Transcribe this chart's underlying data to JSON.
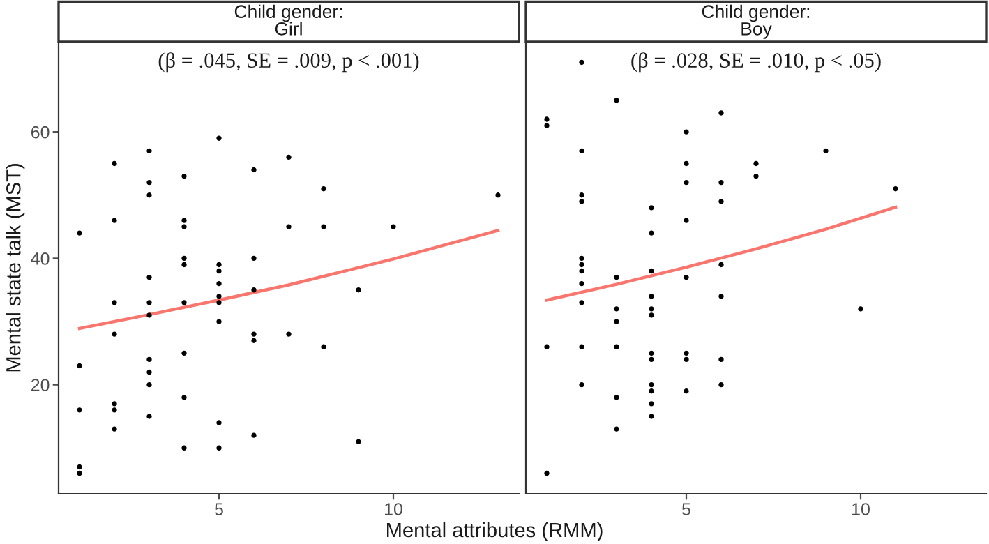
{
  "chart_data": [
    {
      "type": "scatter",
      "title": "Child gender:\nGirl",
      "xlabel": "Mental attributes (RMM)",
      "ylabel": "Mental state talk (MST)",
      "annotations": [
        "(β = .045, SE = .009, p < .001)"
      ],
      "xlim": [
        0.4,
        13.6
      ],
      "xticks": [
        5,
        10
      ],
      "ylim": [
        2.75,
        74.25
      ],
      "yticks": [
        20,
        40,
        60
      ],
      "grid": false,
      "legend": false,
      "marker": "circle",
      "series": [
        {
          "color": "#000000",
          "x": [
            1,
            1,
            1,
            1,
            1,
            2,
            2,
            2,
            2,
            2,
            2,
            2,
            3,
            3,
            3,
            3,
            3,
            3,
            3,
            3,
            3,
            3,
            4,
            4,
            4,
            4,
            4,
            4,
            4,
            4,
            4,
            5,
            5,
            5,
            5,
            5,
            5,
            5,
            5,
            5,
            6,
            6,
            6,
            6,
            6,
            6,
            7,
            7,
            7,
            8,
            8,
            8,
            9,
            9,
            10,
            13
          ],
          "values": [
            44,
            23,
            16,
            7,
            6,
            55,
            46,
            33,
            28,
            17,
            16,
            13,
            57,
            52,
            50,
            37,
            33,
            31,
            24,
            22,
            20,
            15,
            53,
            46,
            45,
            40,
            39,
            33,
            25,
            18,
            10,
            59,
            39,
            38,
            36,
            34,
            33,
            30,
            14,
            10,
            54,
            40,
            35,
            28,
            27,
            12,
            56,
            45,
            28,
            51,
            45,
            26,
            35,
            11,
            45,
            50
          ]
        },
        {
          "type": "line",
          "color": "#f8766d",
          "marker": "none",
          "line_style": "solid",
          "x": [
            1,
            3,
            5,
            7,
            10,
            13
          ],
          "values": [
            28.9,
            31.1,
            33.4,
            35.8,
            39.9,
            44.4
          ]
        }
      ]
    },
    {
      "type": "scatter",
      "title": "Child gender:\nBoy",
      "annotations": [
        "(β = .028, SE = .010, p < .05)"
      ],
      "xlim": [
        0.4,
        13.6
      ],
      "xticks": [
        5,
        10
      ],
      "ylim": [
        2.75,
        74.25
      ],
      "yticks": [
        20,
        40,
        60
      ],
      "tick_labels": "x",
      "grid": false,
      "legend": false,
      "marker": "circle",
      "series": [
        {
          "color": "#000000",
          "x": [
            1,
            1,
            1,
            1,
            2,
            2,
            2,
            2,
            2,
            2,
            2,
            2,
            2,
            2,
            2,
            3,
            3,
            3,
            3,
            3,
            3,
            3,
            4,
            4,
            4,
            4,
            4,
            4,
            4,
            4,
            4,
            4,
            4,
            4,
            5,
            5,
            5,
            5,
            5,
            5,
            5,
            5,
            6,
            6,
            6,
            6,
            6,
            6,
            6,
            7,
            7,
            9,
            10,
            11
          ],
          "values": [
            62,
            61,
            26,
            6,
            71,
            57,
            50,
            49,
            40,
            39,
            38,
            36,
            33,
            26,
            20,
            65,
            37,
            32,
            30,
            26,
            18,
            13,
            48,
            44,
            38,
            34,
            32,
            31,
            25,
            24,
            20,
            19,
            17,
            15,
            60,
            55,
            52,
            46,
            37,
            25,
            24,
            19,
            63,
            52,
            49,
            39,
            34,
            24,
            20,
            55,
            53,
            57,
            32,
            51
          ]
        },
        {
          "type": "line",
          "color": "#f8766d",
          "marker": "none",
          "line_style": "solid",
          "x": [
            1,
            3,
            5,
            7,
            9,
            11
          ],
          "values": [
            33.4,
            35.9,
            38.6,
            41.5,
            44.6,
            48.1
          ]
        }
      ]
    }
  ]
}
